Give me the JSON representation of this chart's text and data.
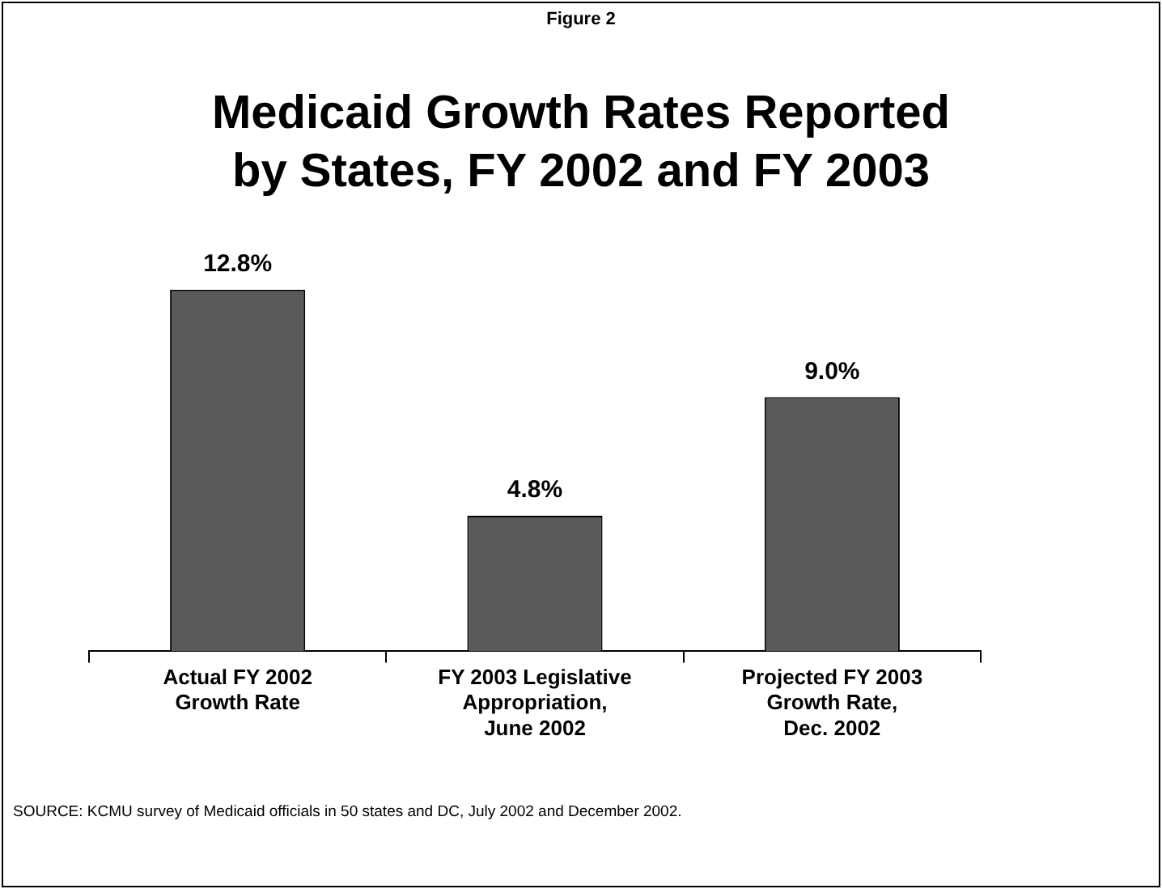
{
  "chart_data": {
    "type": "bar",
    "title": "Medicaid Growth Rates Reported by States, FY 2002 and FY 2003",
    "categories": [
      "Actual FY 2002\nGrowth Rate",
      "FY 2003 Legislative\nAppropriation,\nJune 2002",
      "Projected FY 2003\nGrowth Rate,\nDec. 2002"
    ],
    "values": [
      12.8,
      4.8,
      9.0
    ],
    "value_labels": [
      "12.8%",
      "4.8%",
      "9.0%"
    ],
    "color": "#595959",
    "tick_labels": "x",
    "grid": false,
    "legend": false,
    "annotations": [
      "Figure 2",
      "SOURCE: KCMU survey of Medicaid officials in 50 states and DC, July 2002 and December 2002."
    ]
  }
}
